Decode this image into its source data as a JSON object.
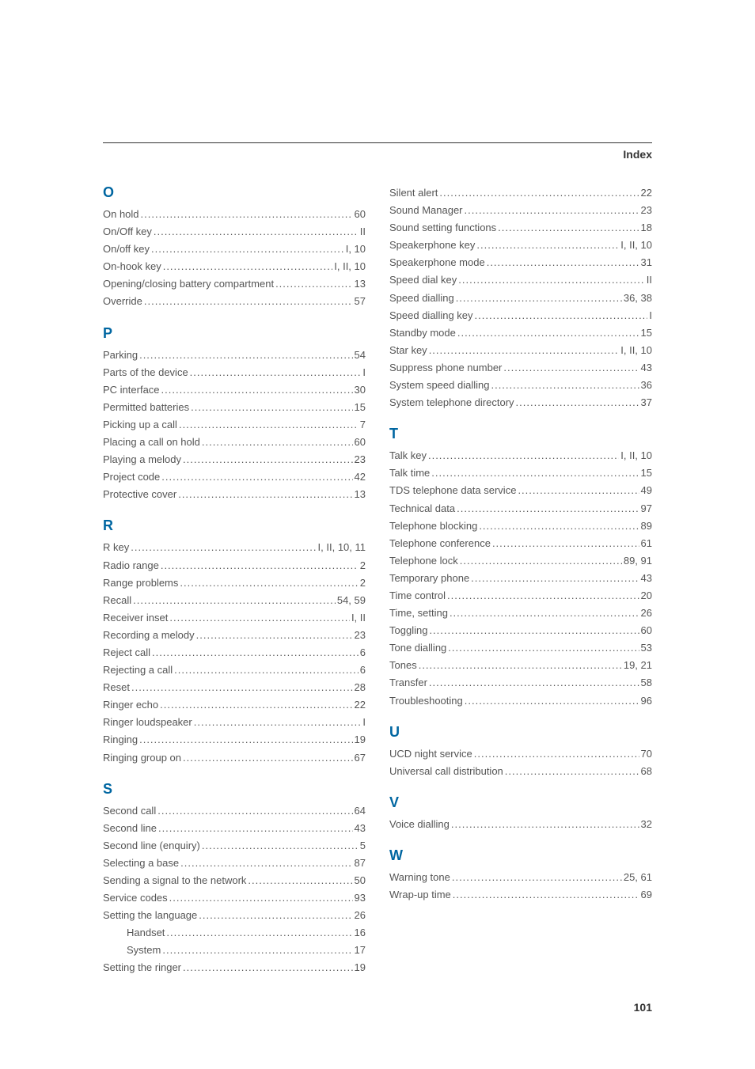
{
  "header": {
    "label": "Index"
  },
  "footer": {
    "page_number": "101"
  },
  "colors": {
    "heading": "#0066a1",
    "text": "#555555",
    "rule": "#333333",
    "background": "#ffffff"
  },
  "typography": {
    "body_fontsize_pt": 10,
    "heading_fontsize_pt": 14,
    "family": "sans-serif"
  },
  "index": {
    "left": [
      {
        "letter": "O",
        "entries": [
          {
            "label": "On hold",
            "page": "60"
          },
          {
            "label": "On/Off key",
            "page": "II"
          },
          {
            "label": "On/off key",
            "page": "I, 10"
          },
          {
            "label": "On-hook key",
            "page": "I, II, 10"
          },
          {
            "label": "Opening/closing battery compartment",
            "page": "13"
          },
          {
            "label": "Override",
            "page": "57"
          }
        ]
      },
      {
        "letter": "P",
        "entries": [
          {
            "label": "Parking",
            "page": "54"
          },
          {
            "label": "Parts of the device",
            "page": "I"
          },
          {
            "label": "PC interface",
            "page": "30"
          },
          {
            "label": "Permitted batteries",
            "page": "15"
          },
          {
            "label": "Picking up a call",
            "page": "7"
          },
          {
            "label": "Placing a call on hold",
            "page": "60"
          },
          {
            "label": "Playing a melody",
            "page": "23"
          },
          {
            "label": "Project code",
            "page": "42"
          },
          {
            "label": "Protective cover",
            "page": "13"
          }
        ]
      },
      {
        "letter": "R",
        "entries": [
          {
            "label": "R key",
            "page": "I, II, 10, 11"
          },
          {
            "label": "Radio range",
            "page": "2"
          },
          {
            "label": "Range problems",
            "page": "2"
          },
          {
            "label": "Recall",
            "page": "54, 59"
          },
          {
            "label": "Receiver inset",
            "page": "I, II"
          },
          {
            "label": "Recording a melody",
            "page": "23"
          },
          {
            "label": "Reject call",
            "page": "6"
          },
          {
            "label": "Rejecting a call",
            "page": "6"
          },
          {
            "label": "Reset",
            "page": "28"
          },
          {
            "label": "Ringer echo",
            "page": "22"
          },
          {
            "label": "Ringer loudspeaker",
            "page": "I"
          },
          {
            "label": "Ringing",
            "page": "19"
          },
          {
            "label": "Ringing group on",
            "page": "67"
          }
        ]
      },
      {
        "letter": "S",
        "entries": [
          {
            "label": "Second call",
            "page": "64"
          },
          {
            "label": "Second line",
            "page": "43"
          },
          {
            "label": "Second line (enquiry)",
            "page": "5"
          },
          {
            "label": "Selecting a base",
            "page": "87"
          },
          {
            "label": "Sending a signal to the network",
            "page": "50"
          },
          {
            "label": "Service codes",
            "page": "93"
          },
          {
            "label": "Setting the language",
            "page": "26"
          },
          {
            "label": "Handset",
            "page": "16",
            "indent": true
          },
          {
            "label": "System",
            "page": "17",
            "indent": true
          },
          {
            "label": "Setting the ringer",
            "page": "19"
          }
        ]
      }
    ],
    "right": [
      {
        "letter": "",
        "entries": [
          {
            "label": "Silent alert",
            "page": "22"
          },
          {
            "label": "Sound Manager",
            "page": "23"
          },
          {
            "label": "Sound setting functions",
            "page": "18"
          },
          {
            "label": "Speakerphone key",
            "page": "I, II, 10"
          },
          {
            "label": "Speakerphone mode",
            "page": "31"
          },
          {
            "label": "Speed dial key",
            "page": "II"
          },
          {
            "label": "Speed dialling",
            "page": "36, 38"
          },
          {
            "label": "Speed dialling key",
            "page": "I"
          },
          {
            "label": "Standby mode",
            "page": "15"
          },
          {
            "label": "Star key",
            "page": "I, II, 10"
          },
          {
            "label": "Suppress phone number",
            "page": "43"
          },
          {
            "label": "System speed dialling",
            "page": "36"
          },
          {
            "label": "System telephone directory",
            "page": "37"
          }
        ]
      },
      {
        "letter": "T",
        "entries": [
          {
            "label": "Talk key",
            "page": "I, II, 10"
          },
          {
            "label": "Talk time",
            "page": "15"
          },
          {
            "label": "TDS telephone data service",
            "page": "49"
          },
          {
            "label": "Technical data",
            "page": "97"
          },
          {
            "label": "Telephone blocking",
            "page": "89"
          },
          {
            "label": "Telephone conference",
            "page": "61"
          },
          {
            "label": "Telephone lock",
            "page": "89, 91"
          },
          {
            "label": "Temporary phone",
            "page": "43"
          },
          {
            "label": "Time control",
            "page": "20"
          },
          {
            "label": "Time, setting",
            "page": "26"
          },
          {
            "label": "Toggling",
            "page": "60"
          },
          {
            "label": "Tone dialling",
            "page": "53"
          },
          {
            "label": "Tones",
            "page": "19, 21"
          },
          {
            "label": "Transfer",
            "page": "58"
          },
          {
            "label": "Troubleshooting",
            "page": "96"
          }
        ]
      },
      {
        "letter": "U",
        "entries": [
          {
            "label": "UCD night service",
            "page": "70"
          },
          {
            "label": "Universal call distribution",
            "page": "68"
          }
        ]
      },
      {
        "letter": "V",
        "entries": [
          {
            "label": "Voice dialling",
            "page": "32"
          }
        ]
      },
      {
        "letter": "W",
        "entries": [
          {
            "label": "Warning tone",
            "page": "25, 61"
          },
          {
            "label": "Wrap-up time",
            "page": "69"
          }
        ]
      }
    ]
  }
}
